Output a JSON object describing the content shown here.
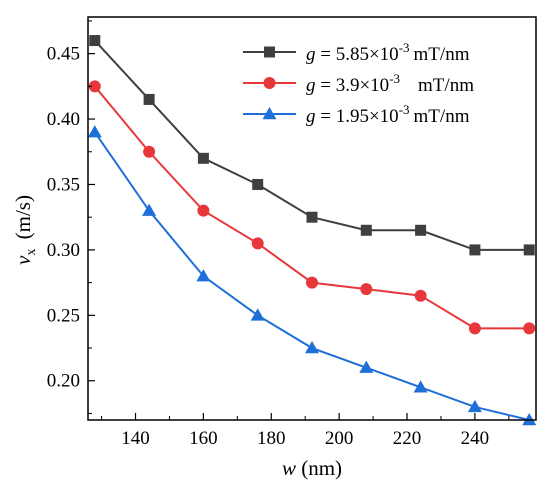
{
  "chart_data": {
    "type": "line",
    "x": [
      128,
      144,
      160,
      176,
      192,
      208,
      224,
      240,
      256
    ],
    "xlim": [
      126,
      258
    ],
    "ylim": [
      0.17,
      0.478
    ],
    "xticks": [
      140,
      160,
      180,
      200,
      220,
      240
    ],
    "yticks": [
      0.2,
      0.25,
      0.3,
      0.35,
      0.4,
      0.45
    ],
    "xtick_labels": [
      "140",
      "160",
      "180",
      "200",
      "220",
      "240"
    ],
    "ytick_labels": [
      "0.20",
      "0.25",
      "0.30",
      "0.35",
      "0.40",
      "0.45"
    ],
    "xlabel": {
      "var": "w",
      "unit": "(nm)"
    },
    "ylabel": {
      "var": "v",
      "sub": "x",
      "unit": "(m/s)"
    },
    "grid": false,
    "legend_position": "top-right",
    "series": [
      {
        "name": "g = 5.85×10-3 mT/nm",
        "label": {
          "var": "g",
          "coef": "= 5.85×10",
          "exp": "-3",
          "unit": "mT/nm"
        },
        "values": [
          0.46,
          0.415,
          0.37,
          0.35,
          0.325,
          0.315,
          0.315,
          0.3,
          0.3
        ],
        "color": "#3f3f3f",
        "marker": "square"
      },
      {
        "name": "g = 3.9×10-3 mT/nm",
        "label": {
          "var": "g",
          "coef": "= 3.9×10",
          "exp": "-3",
          "unit": "mT/nm"
        },
        "values": [
          0.425,
          0.375,
          0.33,
          0.305,
          0.275,
          0.27,
          0.265,
          0.24,
          0.24
        ],
        "color": "#e8373b",
        "marker": "circle"
      },
      {
        "name": "g = 1.95×10-3 mT/nm",
        "label": {
          "var": "g",
          "coef": "= 1.95×10",
          "exp": "-3",
          "unit": "mT/nm"
        },
        "values": [
          0.39,
          0.33,
          0.28,
          0.25,
          0.225,
          0.21,
          0.195,
          0.18,
          0.17
        ],
        "color": "#1e6fd9",
        "marker": "triangle"
      }
    ]
  }
}
